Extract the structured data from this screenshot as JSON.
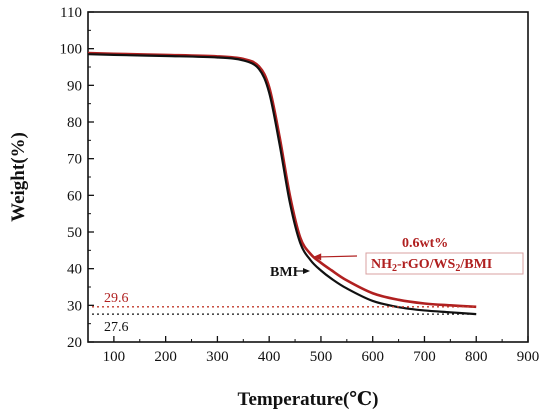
{
  "chart_data": {
    "type": "line",
    "xlabel": "Temperature(℃)",
    "ylabel": "Weight(%)",
    "xlim": [
      50,
      900
    ],
    "ylim": [
      20,
      110
    ],
    "x_ticks": [
      100,
      200,
      300,
      400,
      500,
      600,
      700,
      800,
      900
    ],
    "y_ticks": [
      20,
      30,
      40,
      50,
      60,
      70,
      80,
      90,
      100,
      110
    ],
    "grid": false,
    "legend": "none",
    "series": [
      {
        "name": "BMI",
        "color": "#111111",
        "x": [
          50,
          100,
          200,
          300,
          350,
          380,
          400,
          420,
          440,
          460,
          480,
          500,
          520,
          550,
          600,
          650,
          700,
          750,
          800
        ],
        "y": [
          98.5,
          98.3,
          98.0,
          97.6,
          96.8,
          94.5,
          88.0,
          74.0,
          58.0,
          47.0,
          42.3,
          39.5,
          37.3,
          34.6,
          31.2,
          29.5,
          28.6,
          28.1,
          27.6
        ]
      },
      {
        "name": "0.6wt% NH2-rGO/WS2/BMI",
        "color": "#b02020",
        "x": [
          50,
          100,
          200,
          300,
          350,
          380,
          400,
          420,
          440,
          460,
          480,
          500,
          520,
          550,
          600,
          650,
          700,
          750,
          800
        ],
        "y": [
          98.8,
          98.6,
          98.3,
          97.9,
          97.2,
          95.2,
          89.5,
          76.0,
          60.0,
          48.5,
          44.0,
          41.6,
          39.6,
          36.8,
          33.3,
          31.5,
          30.5,
          30.0,
          29.6
        ]
      }
    ],
    "annotations": {
      "composite_label_line1": "0.6wt%",
      "composite_label_line2_a": "NH",
      "composite_label_line2_sub1": "2",
      "composite_label_line2_b": "-rGO/WS",
      "composite_label_line2_sub2": "2",
      "composite_label_line2_c": "/BMI",
      "bmi_label": "BMI",
      "red_residue": "29.6",
      "black_residue": "27.6"
    }
  }
}
